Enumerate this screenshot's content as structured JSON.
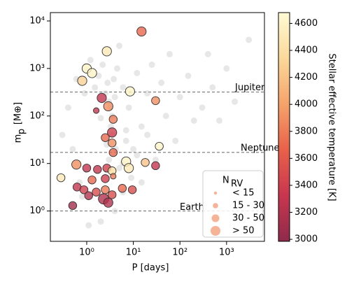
{
  "chart_data": {
    "type": "scatter",
    "xlabel": "P [days]",
    "ylabel": "m",
    "ylabel_sub": "p",
    "ylabel_unit": "[M⊕]",
    "xscale": "log",
    "yscale": "log",
    "xlim": [
      0.166,
      6500
    ],
    "ylim": [
      0.23,
      15000
    ],
    "xticks": [
      {
        "value": 1,
        "label": "10⁰"
      },
      {
        "value": 10,
        "label": "10¹"
      },
      {
        "value": 100,
        "label": "10²"
      },
      {
        "value": 1000,
        "label": "10³"
      }
    ],
    "yticks": [
      {
        "value": 1,
        "label": "10⁰"
      },
      {
        "value": 10,
        "label": "10¹"
      },
      {
        "value": 100,
        "label": "10²"
      },
      {
        "value": 1000,
        "label": "10³"
      },
      {
        "value": 10000,
        "label": "10⁴"
      }
    ],
    "hlines": [
      {
        "value": 318,
        "label": "Jupiter"
      },
      {
        "value": 17.1,
        "label": "Neptune"
      },
      {
        "value": 1,
        "label": "Earth"
      }
    ],
    "series": [
      {
        "color": "#c4c4c4",
        "x": [
          0.3,
          0.4,
          0.5,
          0.6,
          0.7,
          0.9,
          1.2,
          1.5,
          1.8,
          2.0,
          2.2,
          2.5,
          2.8,
          3.0,
          3.2,
          3.5,
          3.8,
          4.0,
          4.5,
          5,
          6,
          7,
          8,
          10,
          12,
          15,
          20,
          25,
          30,
          40,
          50,
          60,
          80,
          100,
          150,
          200,
          300,
          500,
          1000,
          3000,
          0.8,
          1.1,
          2,
          4,
          6,
          9,
          15,
          5,
          3,
          12,
          3.3,
          3.6,
          2.7,
          4.2,
          7,
          6,
          20,
          400,
          700,
          1500
        ],
        "values": [
          40,
          150,
          20,
          600,
          4,
          300,
          1500,
          400,
          700,
          90,
          1200,
          300,
          500,
          200,
          150,
          100,
          600,
          250,
          1000,
          3000,
          400,
          50,
          150,
          20,
          800,
          60,
          300,
          1200,
          12,
          500,
          100,
          2000,
          30,
          250,
          700,
          80,
          150,
          400,
          1000,
          4000,
          2,
          0.5,
          0.6,
          1,
          2.5,
          5,
          4,
          8,
          12,
          15,
          60,
          40,
          25,
          20,
          30,
          10,
          40,
          2000,
          80,
          200
        ]
      },
      {
        "x": [
          15,
          2.7,
          1,
          1.3,
          0.8,
          8.5,
          2.1,
          30,
          2.9,
          3.7,
          1.6,
          3.5,
          2.5,
          3.5,
          3.7,
          36,
          0.6,
          1,
          1.7,
          7,
          8,
          18,
          30,
          2.7,
          3.5,
          0.28,
          0.62,
          0.87,
          1.3,
          2.5,
          1.6,
          2.3,
          2.9,
          1.1,
          0.5,
          5.8,
          3.5,
          9.5,
          2.5,
          3.7
        ],
        "values": [
          6000,
          2300,
          1000,
          800,
          550,
          330,
          240,
          210,
          160,
          85,
          130,
          45,
          35,
          27,
          17,
          23,
          9.5,
          8,
          7.5,
          11,
          8,
          10.5,
          9,
          8,
          7,
          5,
          3.2,
          2.8,
          4.5,
          4.8,
          2.5,
          1.8,
          1.5,
          2.1,
          1.3,
          3,
          2.2,
          2.8,
          2.8,
          5.4
        ],
        "temps": [
          3700,
          4500,
          4600,
          4600,
          4300,
          4600,
          3300,
          3900,
          3900,
          3800,
          3300,
          3400,
          3700,
          3900,
          3700,
          4600,
          3900,
          3300,
          3300,
          4600,
          4500,
          4200,
          3300,
          3400,
          4400,
          4500,
          3300,
          3400,
          3700,
          3400,
          3500,
          3200,
          3200,
          3200,
          3100,
          3700,
          3500,
          3500,
          3800,
          3800
        ],
        "nrv": [
          40,
          40,
          40,
          40,
          40,
          40,
          40,
          30,
          40,
          30,
          15,
          40,
          30,
          30,
          30,
          30,
          40,
          30,
          30,
          40,
          40,
          30,
          30,
          30,
          30,
          30,
          30,
          30,
          30,
          30,
          30,
          50,
          40,
          30,
          30,
          30,
          30,
          30,
          30,
          15
        ]
      }
    ],
    "colorbar": {
      "label": "Stellar effective temperature [K]",
      "clim": [
        2985,
        4680
      ],
      "ticks": [
        3000,
        3200,
        3400,
        3600,
        3800,
        4000,
        4200,
        4400,
        4600
      ],
      "colormap": [
        "#8f2a4b",
        "#c8364e",
        "#e9604a",
        "#f5a36a",
        "#fbd89a",
        "#fffbd4"
      ]
    },
    "legend": {
      "title": "N",
      "title_sub": "RV",
      "labels": [
        "< 15",
        "15 - 30",
        "30 - 50",
        "> 50"
      ],
      "color": "#f4a07a"
    }
  }
}
